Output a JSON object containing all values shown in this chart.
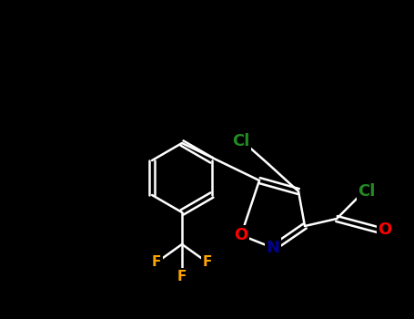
{
  "background_color": "#000000",
  "figure_size": [
    4.55,
    3.5
  ],
  "dpi": 100,
  "bond_color": "#ffffff",
  "bond_width": 1.8,
  "atom_colors": {
    "Cl": "#228B22",
    "F": "#FFA500",
    "O": "#FF0000",
    "N": "#00008B",
    "C": "#ffffff"
  },
  "font_size_atoms": 13,
  "font_size_small": 11
}
